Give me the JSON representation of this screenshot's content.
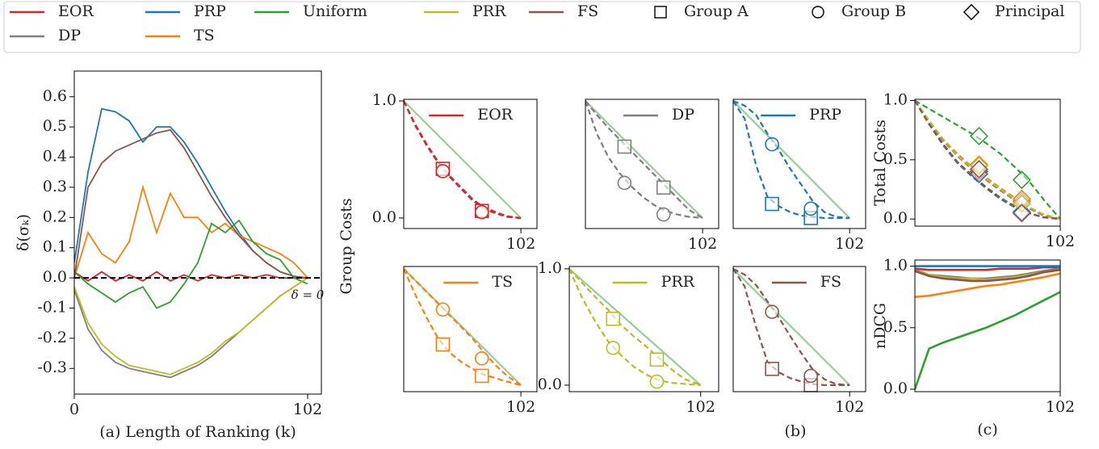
{
  "legend_markers": [
    {
      "name": "Group A",
      "shape": "square"
    },
    {
      "name": "Group B",
      "shape": "circle"
    },
    {
      "name": "Principal",
      "shape": "diamond"
    }
  ],
  "panel_b": {
    "ylabel": "Group Costs",
    "xlabel": "(b)"
  },
  "chart_data": [
    {
      "type": "line",
      "xlabel": "(a) Length of Ranking (k)",
      "ylabel": "δ(σₖ)",
      "x": [
        0,
        6,
        12,
        18,
        24,
        30,
        36,
        42,
        48,
        54,
        60,
        66,
        72,
        78,
        84,
        90,
        96,
        102
      ],
      "series": [
        {
          "name": "EOR",
          "color": "#d62728",
          "values": [
            0.02,
            -0.01,
            0.02,
            -0.01,
            0.01,
            -0.01,
            0.02,
            -0.01,
            0.01,
            -0.01,
            0.01,
            0,
            0.01,
            0,
            0.01,
            0,
            0,
            0
          ]
        },
        {
          "name": "DP",
          "color": "#7f7f7f",
          "values": [
            -0.04,
            -0.17,
            -0.24,
            -0.28,
            -0.3,
            -0.31,
            -0.32,
            -0.33,
            -0.31,
            -0.29,
            -0.26,
            -0.22,
            -0.18,
            -0.14,
            -0.1,
            -0.06,
            -0.03,
            0
          ]
        },
        {
          "name": "PRP",
          "color": "#1f77b4",
          "values": [
            0.05,
            0.35,
            0.56,
            0.55,
            0.52,
            0.45,
            0.5,
            0.5,
            0.45,
            0.38,
            0.3,
            0.22,
            0.15,
            0.09,
            0.05,
            0.02,
            0.005,
            0
          ]
        },
        {
          "name": "TS",
          "color": "#ff7f0e",
          "values": [
            0,
            0.15,
            0.08,
            0.05,
            0.12,
            0.3,
            0.15,
            0.28,
            0.2,
            0.2,
            0.15,
            0.18,
            0.14,
            0.12,
            0.1,
            0.08,
            0.05,
            0
          ]
        },
        {
          "name": "Uniform",
          "color": "#2ca02c",
          "values": [
            0.02,
            -0.02,
            -0.05,
            -0.08,
            -0.05,
            -0.03,
            -0.1,
            -0.08,
            -0.02,
            0.05,
            0.18,
            0.15,
            0.19,
            0.12,
            0.08,
            0.06,
            0,
            -0.02
          ]
        },
        {
          "name": "PRR",
          "color": "#bcbd22",
          "values": [
            -0.03,
            -0.15,
            -0.22,
            -0.26,
            -0.29,
            -0.3,
            -0.31,
            -0.32,
            -0.3,
            -0.28,
            -0.25,
            -0.21,
            -0.18,
            -0.14,
            -0.1,
            -0.06,
            -0.03,
            0
          ]
        },
        {
          "name": "FS",
          "color": "#8c564b",
          "values": [
            0,
            0.3,
            0.38,
            0.42,
            0.44,
            0.46,
            0.48,
            0.49,
            0.43,
            0.35,
            0.27,
            0.2,
            0.14,
            0.09,
            0.05,
            0.02,
            0.005,
            0
          ]
        }
      ],
      "xlim": [
        0,
        108
      ],
      "ylim": [
        -0.385,
        0.685
      ],
      "xticks": [
        0,
        102
      ],
      "yticks": [
        0.6,
        0.5,
        0.4,
        0.3,
        0.2,
        0.1,
        {
          "value": 0,
          "label": "0.0"
        },
        -0.1,
        -0.2,
        -0.3
      ],
      "hline": {
        "value": 0,
        "label": "δ = 0"
      }
    },
    {
      "type": "cost",
      "label": "EOR",
      "color": "#d62728",
      "x": [
        0,
        10,
        20,
        30,
        40,
        50,
        60,
        70,
        80,
        90,
        102
      ],
      "xlim": [
        0,
        116
      ],
      "ylim": [
        -0.09,
        1.014
      ],
      "xticks": [
        102
      ],
      "yticks": [
        {
          "value": 0,
          "label": "0.0"
        },
        {
          "value": 1,
          "label": "1.0"
        }
      ],
      "reference": {
        "x": [
          0,
          102
        ],
        "values": [
          1,
          0
        ]
      },
      "series": [
        {
          "shape": "square",
          "values": [
            1,
            0.8,
            0.63,
            0.48,
            0.36,
            0.26,
            0.16,
            0.09,
            0.05,
            0.015,
            0
          ],
          "marker_x": [
            34,
            68
          ],
          "marker_values": [
            0.42,
            0.06
          ]
        },
        {
          "shape": "circle",
          "values": [
            1,
            0.79,
            0.62,
            0.47,
            0.35,
            0.25,
            0.15,
            0.08,
            0.04,
            0.01,
            0
          ],
          "marker_x": [
            34,
            68
          ],
          "marker_values": [
            0.4,
            0.05
          ]
        }
      ]
    },
    {
      "type": "cost",
      "label": "DP",
      "color": "#7f7f7f",
      "x": [
        0,
        10,
        20,
        30,
        40,
        50,
        60,
        70,
        80,
        90,
        102
      ],
      "xlim": [
        0,
        116
      ],
      "ylim": [
        -0.09,
        1.014
      ],
      "xticks": [
        102
      ],
      "reference": {
        "x": [
          0,
          102
        ],
        "values": [
          1,
          0
        ]
      },
      "series": [
        {
          "shape": "square",
          "values": [
            1,
            0.88,
            0.77,
            0.67,
            0.57,
            0.47,
            0.37,
            0.27,
            0.17,
            0.07,
            0
          ],
          "marker_x": [
            34,
            68
          ],
          "marker_values": [
            0.61,
            0.26
          ]
        },
        {
          "shape": "circle",
          "values": [
            1,
            0.72,
            0.52,
            0.38,
            0.27,
            0.18,
            0.11,
            0.06,
            0.03,
            0.01,
            0
          ],
          "marker_x": [
            34,
            68
          ],
          "marker_values": [
            0.3,
            0.03
          ]
        }
      ]
    },
    {
      "type": "cost",
      "label": "PRP",
      "color": "#1f77b4",
      "x": [
        0,
        10,
        20,
        30,
        40,
        50,
        60,
        70,
        80,
        90,
        102
      ],
      "xlim": [
        0,
        116
      ],
      "ylim": [
        -0.09,
        1.014
      ],
      "xticks": [
        102
      ],
      "reference": {
        "x": [
          0,
          102
        ],
        "values": [
          1,
          0
        ]
      },
      "series": [
        {
          "shape": "square",
          "values": [
            1,
            0.85,
            0.45,
            0.18,
            0.1,
            0.05,
            0.02,
            0.01,
            0,
            0,
            0
          ],
          "marker_x": [
            34,
            68
          ],
          "marker_values": [
            0.12,
            0.0
          ]
        },
        {
          "shape": "circle",
          "values": [
            1,
            0.96,
            0.88,
            0.72,
            0.58,
            0.42,
            0.28,
            0.14,
            0.05,
            0.01,
            0
          ],
          "marker_x": [
            34,
            68
          ],
          "marker_values": [
            0.63,
            0.08
          ]
        }
      ]
    },
    {
      "type": "cost",
      "label": "TS",
      "color": "#ff7f0e",
      "x": [
        0,
        10,
        20,
        30,
        40,
        50,
        60,
        70,
        80,
        90,
        102
      ],
      "xlim": [
        0,
        116
      ],
      "ylim": [
        -0.056,
        1.02
      ],
      "xticks": [
        102
      ],
      "reference": {
        "x": [
          0,
          102
        ],
        "values": [
          1,
          0
        ]
      },
      "series": [
        {
          "shape": "square",
          "values": [
            1,
            0.78,
            0.58,
            0.4,
            0.28,
            0.2,
            0.14,
            0.09,
            0.06,
            0.03,
            0
          ],
          "marker_x": [
            34,
            68
          ],
          "marker_values": [
            0.35,
            0.08
          ]
        },
        {
          "shape": "circle",
          "values": [
            1,
            0.9,
            0.8,
            0.7,
            0.6,
            0.5,
            0.4,
            0.28,
            0.17,
            0.08,
            0
          ],
          "marker_x": [
            34,
            68
          ],
          "marker_values": [
            0.65,
            0.23
          ]
        }
      ]
    },
    {
      "type": "cost",
      "label": "PRR",
      "color": "#bcbd22",
      "x": [
        0,
        10,
        20,
        30,
        40,
        50,
        60,
        70,
        80,
        90,
        102
      ],
      "xlim": [
        0,
        116
      ],
      "ylim": [
        -0.056,
        1.02
      ],
      "xticks": [
        102
      ],
      "yticks": [
        {
          "value": 0,
          "label": "0.0"
        },
        {
          "value": 1,
          "label": "1.0"
        }
      ],
      "reference": {
        "x": [
          0,
          102
        ],
        "values": [
          1,
          0
        ]
      },
      "series": [
        {
          "shape": "square",
          "values": [
            1,
            0.88,
            0.76,
            0.65,
            0.52,
            0.42,
            0.33,
            0.23,
            0.13,
            0.05,
            0
          ],
          "marker_x": [
            34,
            68
          ],
          "marker_values": [
            0.57,
            0.22
          ]
        },
        {
          "shape": "circle",
          "values": [
            1,
            0.75,
            0.55,
            0.38,
            0.26,
            0.16,
            0.09,
            0.04,
            0.02,
            0.01,
            0
          ],
          "marker_x": [
            34,
            68
          ],
          "marker_values": [
            0.32,
            0.03
          ]
        }
      ]
    },
    {
      "type": "cost",
      "label": "FS",
      "color": "#8c564b",
      "x": [
        0,
        10,
        20,
        30,
        40,
        50,
        60,
        70,
        80,
        90,
        102
      ],
      "xlim": [
        0,
        116
      ],
      "ylim": [
        -0.056,
        1.02
      ],
      "xticks": [
        102
      ],
      "reference": {
        "x": [
          0,
          102
        ],
        "values": [
          1,
          0
        ]
      },
      "series": [
        {
          "shape": "square",
          "values": [
            1,
            0.85,
            0.5,
            0.2,
            0.11,
            0.06,
            0.03,
            0.01,
            0,
            0,
            0
          ],
          "marker_x": [
            34,
            68
          ],
          "marker_values": [
            0.14,
            0.0
          ]
        },
        {
          "shape": "circle",
          "values": [
            1,
            0.95,
            0.86,
            0.72,
            0.58,
            0.42,
            0.27,
            0.13,
            0.05,
            0.01,
            0
          ],
          "marker_x": [
            34,
            68
          ],
          "marker_values": [
            0.63,
            0.08
          ]
        }
      ]
    },
    {
      "type": "total",
      "ylabel": "Total Costs",
      "x": [
        0,
        10,
        20,
        30,
        40,
        50,
        60,
        70,
        80,
        90,
        102
      ],
      "xlim": [
        0,
        102
      ],
      "ylim": [
        -0.06,
        1.01
      ],
      "xticks": [
        102
      ],
      "yticks": [
        {
          "value": 0,
          "label": "0.0"
        },
        0.5,
        {
          "value": 1,
          "label": "1.0"
        }
      ],
      "series": [
        {
          "color": "#d62728",
          "values": [
            1,
            0.8,
            0.63,
            0.48,
            0.36,
            0.26,
            0.17,
            0.1,
            0.05,
            0.015,
            0
          ],
          "marker_x": [
            45,
            75
          ],
          "marker_values": [
            0.4,
            0.05
          ]
        },
        {
          "color": "#7f7f7f",
          "values": [
            1,
            0.82,
            0.66,
            0.53,
            0.42,
            0.33,
            0.24,
            0.16,
            0.09,
            0.03,
            0
          ],
          "marker_x": [
            45,
            75
          ],
          "marker_values": [
            0.45,
            0.15
          ]
        },
        {
          "color": "#1f77b4",
          "values": [
            1,
            0.8,
            0.62,
            0.47,
            0.36,
            0.26,
            0.17,
            0.1,
            0.05,
            0.015,
            0
          ],
          "marker_x": [
            45,
            75
          ],
          "marker_values": [
            0.38,
            0.06
          ]
        },
        {
          "color": "#ff7f0e",
          "values": [
            1,
            0.83,
            0.67,
            0.55,
            0.44,
            0.35,
            0.26,
            0.18,
            0.1,
            0.04,
            0
          ],
          "marker_x": [
            45,
            75
          ],
          "marker_values": [
            0.46,
            0.17
          ]
        },
        {
          "color": "#2ca02c",
          "values": [
            1,
            0.93,
            0.86,
            0.79,
            0.72,
            0.64,
            0.55,
            0.44,
            0.32,
            0.17,
            0
          ],
          "marker_x": [
            45,
            75
          ],
          "marker_values": [
            0.7,
            0.33
          ]
        },
        {
          "color": "#bcbd22",
          "values": [
            1,
            0.83,
            0.67,
            0.54,
            0.43,
            0.34,
            0.25,
            0.17,
            0.1,
            0.04,
            0
          ],
          "marker_x": [
            45,
            75
          ],
          "marker_values": [
            0.45,
            0.13
          ]
        },
        {
          "color": "#8c564b",
          "values": [
            1,
            0.8,
            0.63,
            0.48,
            0.37,
            0.27,
            0.18,
            0.11,
            0.05,
            0.015,
            0
          ],
          "marker_x": [
            45,
            75
          ],
          "marker_values": [
            0.42,
            0.05
          ]
        }
      ]
    },
    {
      "type": "ndcg",
      "ylabel": "nDCG",
      "xlabel": "(c)",
      "x": [
        0,
        10,
        20,
        30,
        40,
        50,
        60,
        70,
        80,
        90,
        102
      ],
      "xlim": [
        0,
        102
      ],
      "ylim": [
        -0.02,
        1.05
      ],
      "xticks": [
        102
      ],
      "yticks": [
        {
          "value": 0,
          "label": "0.0"
        },
        0.5,
        {
          "value": 1,
          "label": "1.0"
        }
      ],
      "series": [
        {
          "color": "#d62728",
          "values": [
            0.98,
            0.97,
            0.97,
            0.97,
            0.97,
            0.97,
            0.98,
            0.98,
            0.98,
            0.99,
            0.99
          ]
        },
        {
          "color": "#7f7f7f",
          "values": [
            0.97,
            0.93,
            0.92,
            0.91,
            0.9,
            0.9,
            0.91,
            0.92,
            0.94,
            0.96,
            0.98
          ]
        },
        {
          "color": "#1f77b4",
          "values": [
            1,
            1,
            1,
            1,
            1,
            1,
            1,
            1,
            1,
            1,
            1
          ]
        },
        {
          "color": "#ff7f0e",
          "values": [
            0.75,
            0.76,
            0.78,
            0.8,
            0.82,
            0.84,
            0.85,
            0.87,
            0.89,
            0.91,
            0.94
          ]
        },
        {
          "color": "#2ca02c",
          "values": [
            0,
            0.33,
            0.38,
            0.42,
            0.46,
            0.5,
            0.55,
            0.6,
            0.66,
            0.72,
            0.79
          ]
        },
        {
          "color": "#bcbd22",
          "values": [
            0.96,
            0.93,
            0.91,
            0.9,
            0.9,
            0.89,
            0.9,
            0.91,
            0.93,
            0.95,
            0.97
          ]
        },
        {
          "color": "#8c564b",
          "values": [
            0.96,
            0.92,
            0.9,
            0.89,
            0.88,
            0.88,
            0.89,
            0.9,
            0.92,
            0.95,
            0.97
          ]
        }
      ]
    }
  ]
}
